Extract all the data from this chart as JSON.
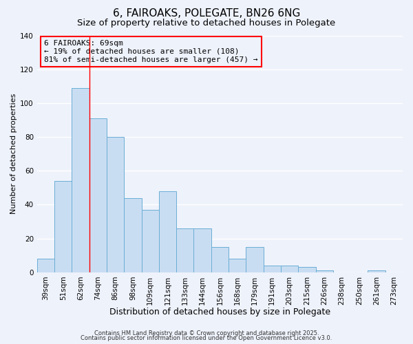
{
  "title": "6, FAIROAKS, POLEGATE, BN26 6NG",
  "subtitle": "Size of property relative to detached houses in Polegate",
  "xlabel": "Distribution of detached houses by size in Polegate",
  "ylabel": "Number of detached properties",
  "categories": [
    "39sqm",
    "51sqm",
    "62sqm",
    "74sqm",
    "86sqm",
    "98sqm",
    "109sqm",
    "121sqm",
    "133sqm",
    "144sqm",
    "156sqm",
    "168sqm",
    "179sqm",
    "191sqm",
    "203sqm",
    "215sqm",
    "226sqm",
    "238sqm",
    "250sqm",
    "261sqm",
    "273sqm"
  ],
  "values": [
    8,
    54,
    109,
    91,
    80,
    44,
    37,
    48,
    26,
    26,
    15,
    8,
    15,
    4,
    4,
    3,
    1,
    0,
    0,
    1,
    0
  ],
  "bar_color": "#c9ddf2",
  "bar_edge_color": "#6aaed6",
  "ylim": [
    0,
    140
  ],
  "yticks": [
    0,
    20,
    40,
    60,
    80,
    100,
    120,
    140
  ],
  "red_line_x": 2.5,
  "annotation_title": "6 FAIROAKS: 69sqm",
  "annotation_line1": "← 19% of detached houses are smaller (108)",
  "annotation_line2": "81% of semi-detached houses are larger (457) →",
  "footer1": "Contains HM Land Registry data © Crown copyright and database right 2025.",
  "footer2": "Contains public sector information licensed under the Open Government Licence v3.0.",
  "bg_color": "#eef2fb",
  "grid_color": "#ffffff",
  "title_fontsize": 11,
  "subtitle_fontsize": 9.5,
  "xlabel_fontsize": 9,
  "ylabel_fontsize": 8,
  "tick_fontsize": 7.5,
  "footer_fontsize": 6,
  "annotation_fontsize": 8
}
